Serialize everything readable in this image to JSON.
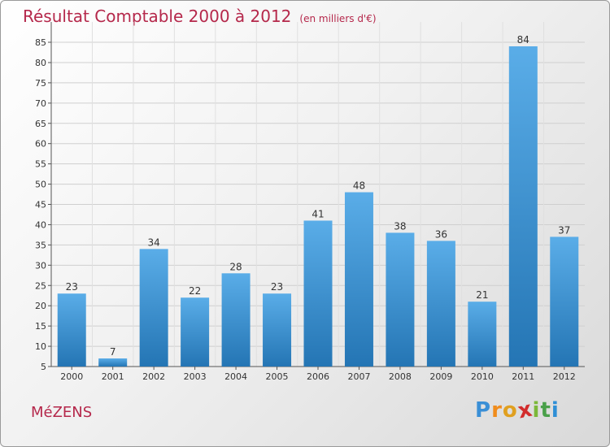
{
  "chart_data": {
    "type": "bar",
    "title": "Résultat Comptable 2000 à 2012",
    "subtitle": "(en milliers d'€)",
    "categories": [
      "2000",
      "2001",
      "2002",
      "2003",
      "2004",
      "2005",
      "2006",
      "2007",
      "2008",
      "2009",
      "2010",
      "2011",
      "2012"
    ],
    "values": [
      23,
      7,
      34,
      22,
      28,
      23,
      41,
      48,
      38,
      36,
      21,
      84,
      37
    ],
    "yticks": [
      5,
      10,
      15,
      20,
      25,
      30,
      35,
      40,
      45,
      50,
      55,
      60,
      65,
      70,
      75,
      80,
      85
    ],
    "ylim": [
      5,
      85
    ],
    "xlabel": "",
    "ylabel": "",
    "grid": true
  },
  "footer": {
    "commune": "MéZENS",
    "logo_letters": [
      "P",
      "r",
      "o",
      "x",
      "i",
      "t",
      "i"
    ]
  },
  "colors": {
    "title": "#b5284b",
    "bar_top": "#5aade8",
    "bar_bottom": "#2475b4",
    "logo": [
      "#3a8fd6",
      "#f08c1c",
      "#e0a020",
      "#d22c2c",
      "#7cb83a",
      "#4aa04a",
      "#2f8fd6"
    ]
  }
}
